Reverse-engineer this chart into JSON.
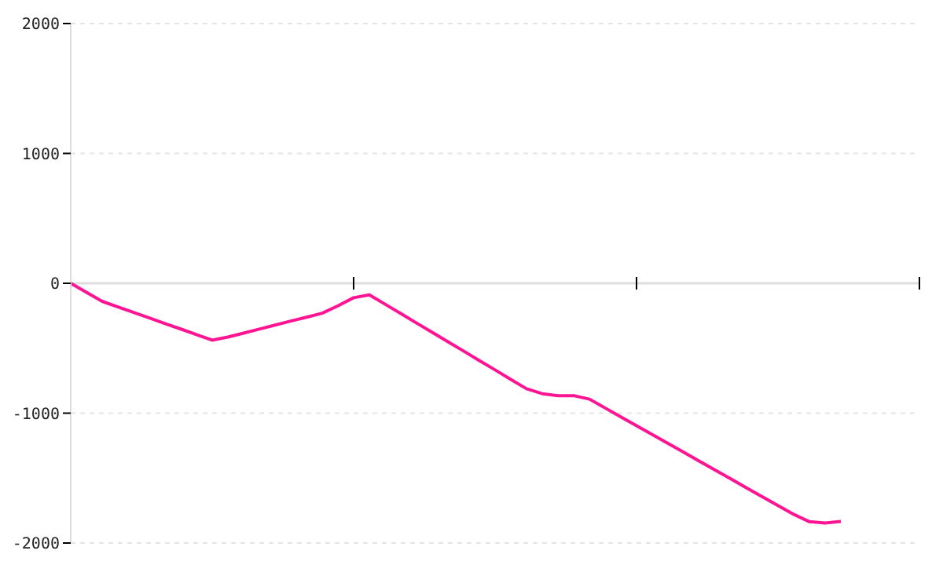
{
  "chart_data": {
    "type": "line",
    "categories": [
      null,
      null,
      null,
      null,
      null,
      null,
      null,
      null,
      null,
      null,
      null,
      null,
      null,
      null,
      null,
      null,
      null,
      null,
      null,
      null,
      null,
      null,
      null,
      null,
      null,
      null,
      null,
      null,
      null,
      null,
      null,
      null,
      null,
      null,
      null,
      null,
      null,
      null,
      null,
      null,
      null,
      null,
      null,
      null,
      null,
      null,
      null,
      null,
      null,
      null,
      null,
      null,
      null,
      null,
      null
    ],
    "series": [
      {
        "color": "#ff1493",
        "values": [
          0,
          -70,
          -139,
          -182,
          -224,
          -267,
          -310,
          -352,
          -395,
          -438,
          -414,
          -384,
          -353,
          -322,
          -291,
          -261,
          -230,
          -174,
          -111,
          -89,
          -161,
          -233,
          -306,
          -378,
          -450,
          -522,
          -595,
          -667,
          -740,
          -812,
          -850,
          -865,
          -865,
          -892,
          -960,
          -1029,
          -1097,
          -1165,
          -1233,
          -1301,
          -1370,
          -1438,
          -1506,
          -1575,
          -1643,
          -1711,
          -1779,
          -1836,
          -1846,
          -1834,
          null,
          null,
          null,
          null,
          null
        ]
      }
    ],
    "ylim": [
      -2000,
      2000
    ],
    "yticks": [
      -2000,
      -1000,
      0,
      1000,
      2000
    ],
    "grid": "y",
    "tick_labels": "y",
    "line_style": "solid"
  }
}
